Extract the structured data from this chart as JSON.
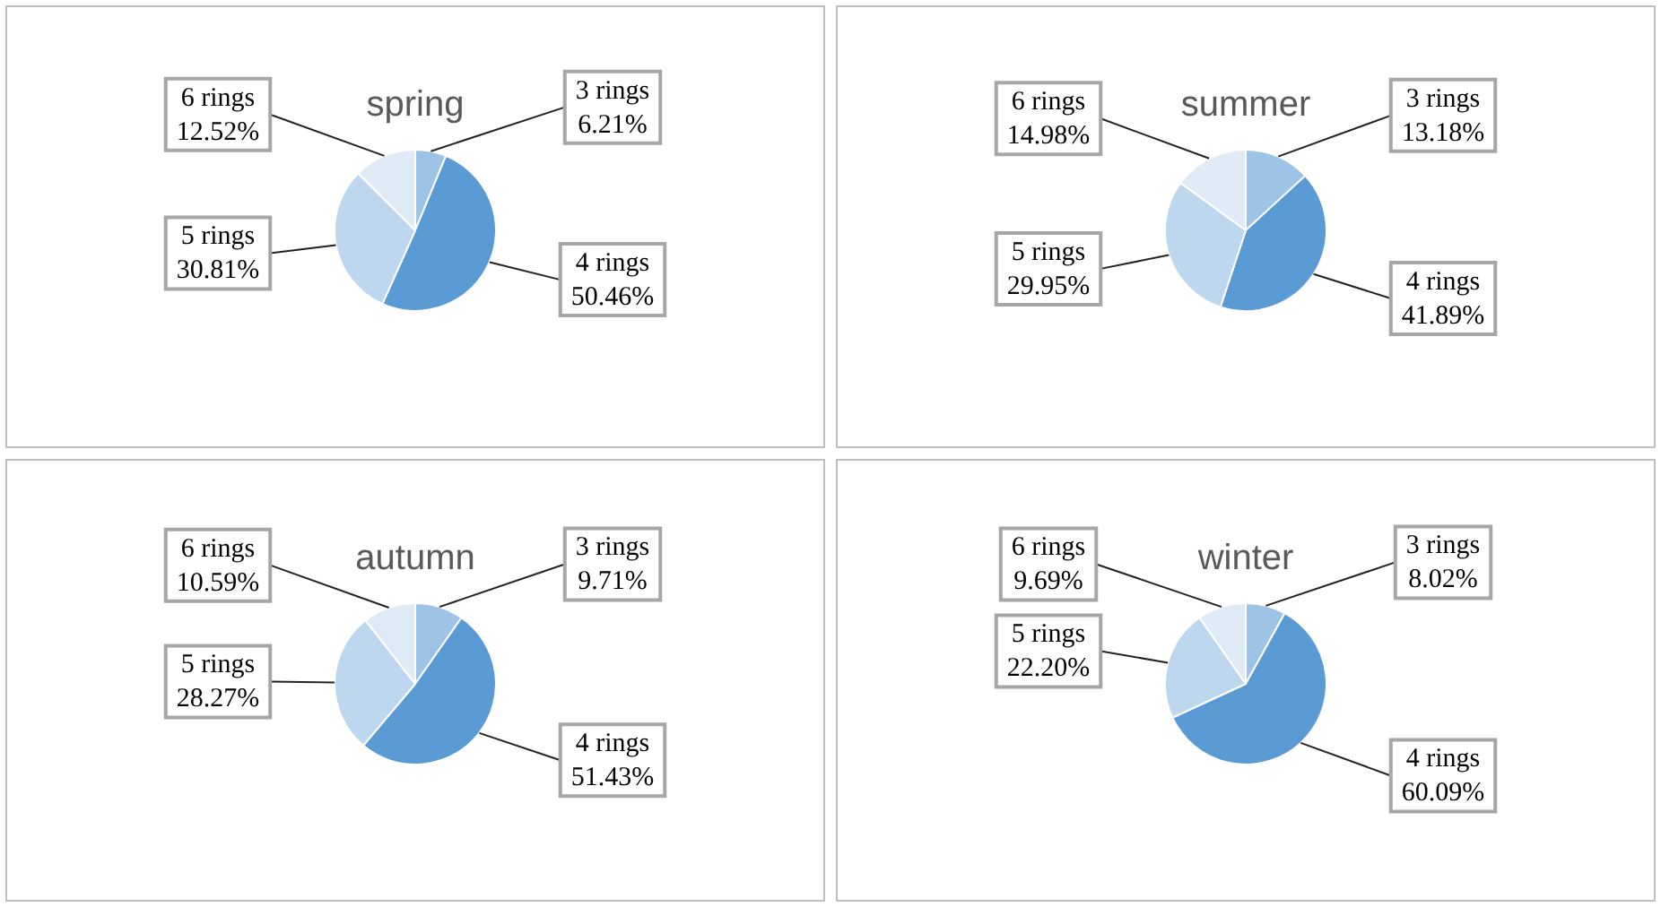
{
  "chart_data": [
    {
      "type": "pie",
      "title": "spring",
      "categories": [
        "3 rings",
        "4 rings",
        "5 rings",
        "6 rings"
      ],
      "values": [
        6.21,
        50.46,
        30.81,
        12.52
      ],
      "value_labels": [
        "6.21%",
        "50.46%",
        "30.81%",
        "12.52%"
      ],
      "colors": [
        "#9dc3e6",
        "#5b9bd5",
        "#bdd7ee",
        "#deebf7"
      ],
      "legend": false
    },
    {
      "type": "pie",
      "title": "summer",
      "categories": [
        "3 rings",
        "4 rings",
        "5 rings",
        "6 rings"
      ],
      "values": [
        13.18,
        41.89,
        29.95,
        14.98
      ],
      "value_labels": [
        "13.18%",
        "41.89%",
        "29.95%",
        "14.98%"
      ],
      "colors": [
        "#9dc3e6",
        "#5b9bd5",
        "#bdd7ee",
        "#deebf7"
      ],
      "legend": false
    },
    {
      "type": "pie",
      "title": "autumn",
      "categories": [
        "3 rings",
        "4 rings",
        "5 rings",
        "6 rings"
      ],
      "values": [
        9.71,
        51.43,
        28.27,
        10.59
      ],
      "value_labels": [
        "9.71%",
        "51.43%",
        "28.27%",
        "10.59%"
      ],
      "colors": [
        "#9dc3e6",
        "#5b9bd5",
        "#bdd7ee",
        "#deebf7"
      ],
      "legend": false
    },
    {
      "type": "pie",
      "title": "winter",
      "categories": [
        "3 rings",
        "4 rings",
        "5 rings",
        "6 rings"
      ],
      "values": [
        8.02,
        60.09,
        22.2,
        9.69
      ],
      "value_labels": [
        "8.02%",
        "60.09%",
        "22.20%",
        "9.69%"
      ],
      "colors": [
        "#9dc3e6",
        "#5b9bd5",
        "#bdd7ee",
        "#deebf7"
      ],
      "legend": false
    }
  ]
}
